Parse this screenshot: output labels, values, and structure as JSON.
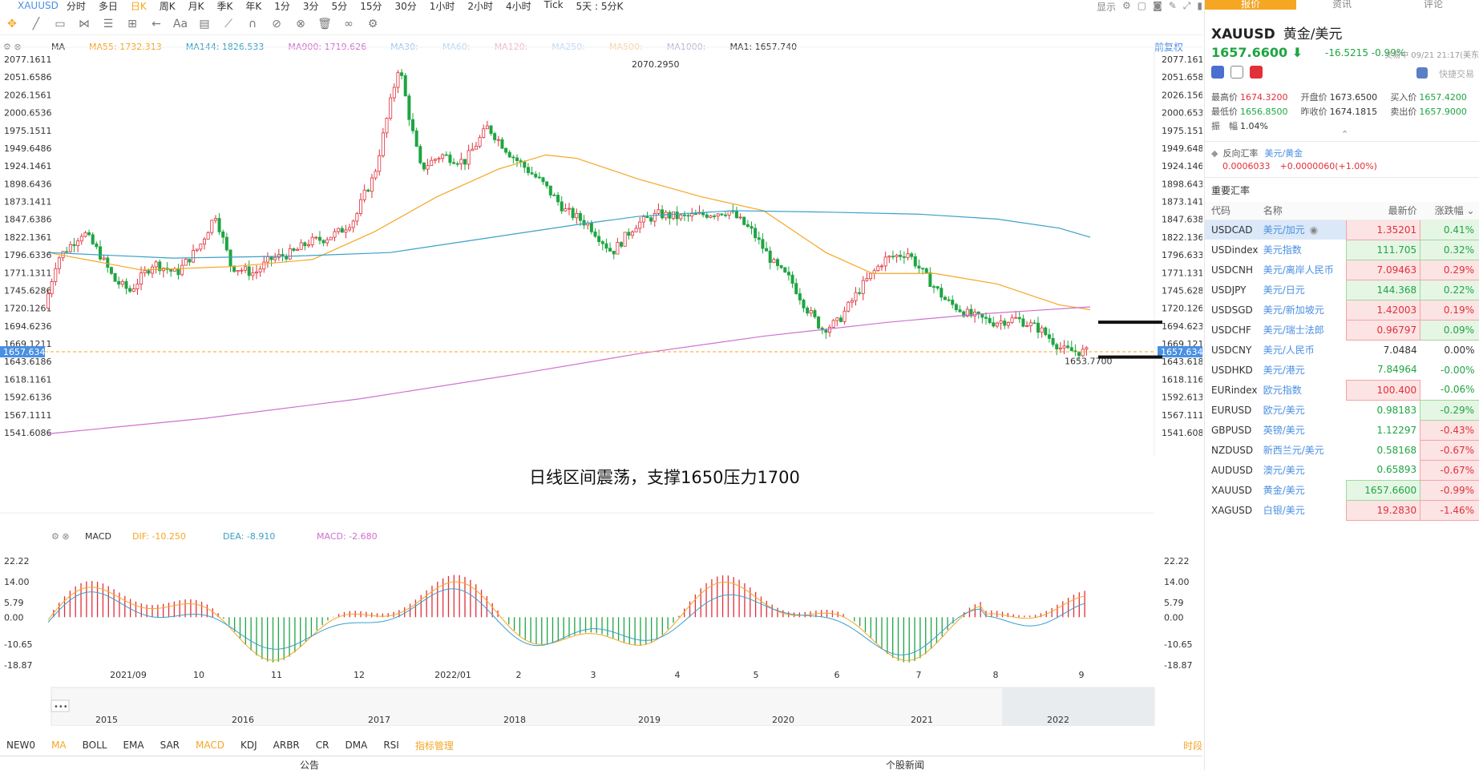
{
  "topbar": {
    "symbol": "XAUUSD",
    "timeframes": [
      "分时",
      "多日",
      "日K",
      "周K",
      "月K",
      "季K",
      "年K",
      "1分",
      "3分",
      "5分",
      "15分",
      "30分",
      "1小时",
      "2小时",
      "4小时",
      "Tick",
      "5天 : 5分K"
    ],
    "active_timeframe": "日K",
    "display_label": "显示"
  },
  "chart": {
    "ma_legend": [
      {
        "label": "MA",
        "color": "#333333"
      },
      {
        "label": "MA55: 1732.313",
        "color": "#f5a623"
      },
      {
        "label": "MA144: 1826.533",
        "color": "#3aa0c8"
      },
      {
        "label": "MA900: 1719.626",
        "color": "#d070d0"
      },
      {
        "label": "MA30:",
        "color": "#9ec7ef"
      },
      {
        "label": "MA60:",
        "color": "#b7d7f0"
      },
      {
        "label": "MA120:",
        "color": "#f0b8c8"
      },
      {
        "label": "MA250:",
        "color": "#c0d8f8"
      },
      {
        "label": "MA500:",
        "color": "#f5d8a0"
      },
      {
        "label": "MA1000:",
        "color": "#b8b8d8"
      },
      {
        "label": "MA1: 1657.740",
        "color": "#333333"
      }
    ],
    "adjust_label": "前复权",
    "price_ticks": [
      "2077.1611",
      "2051.6586",
      "2026.1561",
      "2000.6536",
      "1975.1511",
      "1949.6486",
      "1924.1461",
      "1898.6436",
      "1873.1411",
      "1847.6386",
      "1822.1361",
      "1796.6336",
      "1771.1311",
      "1745.6286",
      "1720.1261",
      "1694.6236",
      "1669.1211",
      "1643.6186",
      "1618.1161",
      "1592.6136",
      "1567.1111",
      "1541.6086"
    ],
    "current_price_tag": "1657.6340",
    "high_label": "2070.2950",
    "low_label": "1653.7700",
    "annotation": "日线区间震荡，支撑1650压力1700",
    "date_ticks": [
      "2021/09",
      "10",
      "11",
      "12",
      "2022/01",
      "2",
      "3",
      "4",
      "5",
      "6",
      "7",
      "8",
      "9"
    ],
    "overview_years": [
      "2015",
      "2016",
      "2017",
      "2018",
      "2019",
      "2020",
      "2021",
      "2022"
    ],
    "macd_legend": {
      "name": "MACD",
      "dif": "DIF: -10.250",
      "dea": "DEA: -8.910",
      "macd": "MACD: -2.680"
    },
    "macd_ticks": [
      "22.22",
      "14.00",
      "5.79",
      "0.00",
      "-10.65",
      "-18.87"
    ],
    "colors": {
      "up": "#e0303a",
      "down": "#1ea541",
      "ma55": "#f5a623",
      "ma144": "#3aa0c8",
      "ma900": "#d070d0",
      "dif": "#f5a623",
      "dea": "#3aa0c8"
    }
  },
  "indicators": [
    "NEW0",
    "MA",
    "BOLL",
    "EMA",
    "SAR",
    "MACD",
    "KDJ",
    "ARBR",
    "CR",
    "DMA",
    "RSI"
  ],
  "indicator_manager": "指标管理",
  "timeshare": "时段",
  "bottom_tabs": [
    "公告",
    "个股新闻"
  ],
  "side": {
    "tabs": [
      "报价",
      "资讯",
      "评论"
    ],
    "symbol": "XAUUSD",
    "name": "黄金/美元",
    "price": "1657.6600",
    "change": "-16.5215",
    "change_pct": "-0.99%",
    "status": "交易中 09/21 21:17(美东",
    "quick_trade": "快捷交易",
    "stats": [
      [
        {
          "label": "最高价",
          "value": "1674.3200",
          "color": "red"
        },
        {
          "label": "开盘价",
          "value": "1673.6500",
          "color": "dark"
        },
        {
          "label": "买入价",
          "value": "1657.4200",
          "color": "green"
        }
      ],
      [
        {
          "label": "最低价",
          "value": "1656.8500",
          "color": "green"
        },
        {
          "label": "昨收价",
          "value": "1674.1815",
          "color": "dark"
        },
        {
          "label": "卖出价",
          "value": "1657.9000",
          "color": "green"
        }
      ],
      [
        {
          "label": "振　幅",
          "value": "1.04%",
          "color": "dark"
        }
      ]
    ],
    "reverse_label": "反向汇率",
    "reverse_pair": "美元/黄金",
    "reverse_value": "0.0006033",
    "reverse_change": "+0.0000060(+1.00%)",
    "key_rates_title": "重要汇率",
    "table_headers": [
      "代码",
      "名称",
      "最新价",
      "涨跌幅"
    ],
    "rates": [
      {
        "code": "USDCAD",
        "name": "美元/加元",
        "price": "1.35201",
        "chg": "0.41%",
        "pbox": "red",
        "cbox": "green",
        "selected": true
      },
      {
        "code": "USDindex",
        "name": "美元指数",
        "price": "111.705",
        "chg": "0.32%",
        "pbox": "green",
        "cbox": "green"
      },
      {
        "code": "USDCNH",
        "name": "美元/离岸人民币",
        "price": "7.09463",
        "chg": "0.29%",
        "pbox": "red",
        "cbox": "red"
      },
      {
        "code": "USDJPY",
        "name": "美元/日元",
        "price": "144.368",
        "chg": "0.22%",
        "pbox": "green",
        "cbox": "green"
      },
      {
        "code": "USDSGD",
        "name": "美元/新加坡元",
        "price": "1.42003",
        "chg": "0.19%",
        "pbox": "red",
        "cbox": "red"
      },
      {
        "code": "USDCHF",
        "name": "美元/瑞士法郎",
        "price": "0.96797",
        "chg": "0.09%",
        "pbox": "red",
        "cbox": "green"
      },
      {
        "code": "USDCNY",
        "name": "美元/人民币",
        "price": "7.0484",
        "chg": "0.00%",
        "pbox": "none",
        "cbox": "none"
      },
      {
        "code": "USDHKD",
        "name": "美元/港元",
        "price": "7.84964",
        "chg": "-0.00%",
        "pbox": "txtgreen",
        "cbox": "txtgreen"
      },
      {
        "code": "EURindex",
        "name": "欧元指数",
        "price": "100.400",
        "chg": "-0.06%",
        "pbox": "red",
        "cbox": "txtgreen"
      },
      {
        "code": "EURUSD",
        "name": "欧元/美元",
        "price": "0.98183",
        "chg": "-0.29%",
        "pbox": "txtgreen",
        "cbox": "green"
      },
      {
        "code": "GBPUSD",
        "name": "英镑/美元",
        "price": "1.12297",
        "chg": "-0.43%",
        "pbox": "txtgreen",
        "cbox": "red"
      },
      {
        "code": "NZDUSD",
        "name": "新西兰元/美元",
        "price": "0.58168",
        "chg": "-0.67%",
        "pbox": "txtgreen",
        "cbox": "red"
      },
      {
        "code": "AUDUSD",
        "name": "澳元/美元",
        "price": "0.65893",
        "chg": "-0.67%",
        "pbox": "txtgreen",
        "cbox": "red"
      },
      {
        "code": "XAUUSD",
        "name": "黄金/美元",
        "price": "1657.6600",
        "chg": "-0.99%",
        "pbox": "green",
        "cbox": "red"
      },
      {
        "code": "XAGUSD",
        "name": "白银/美元",
        "price": "19.2830",
        "chg": "-1.46%",
        "pbox": "red",
        "cbox": "red"
      }
    ]
  }
}
